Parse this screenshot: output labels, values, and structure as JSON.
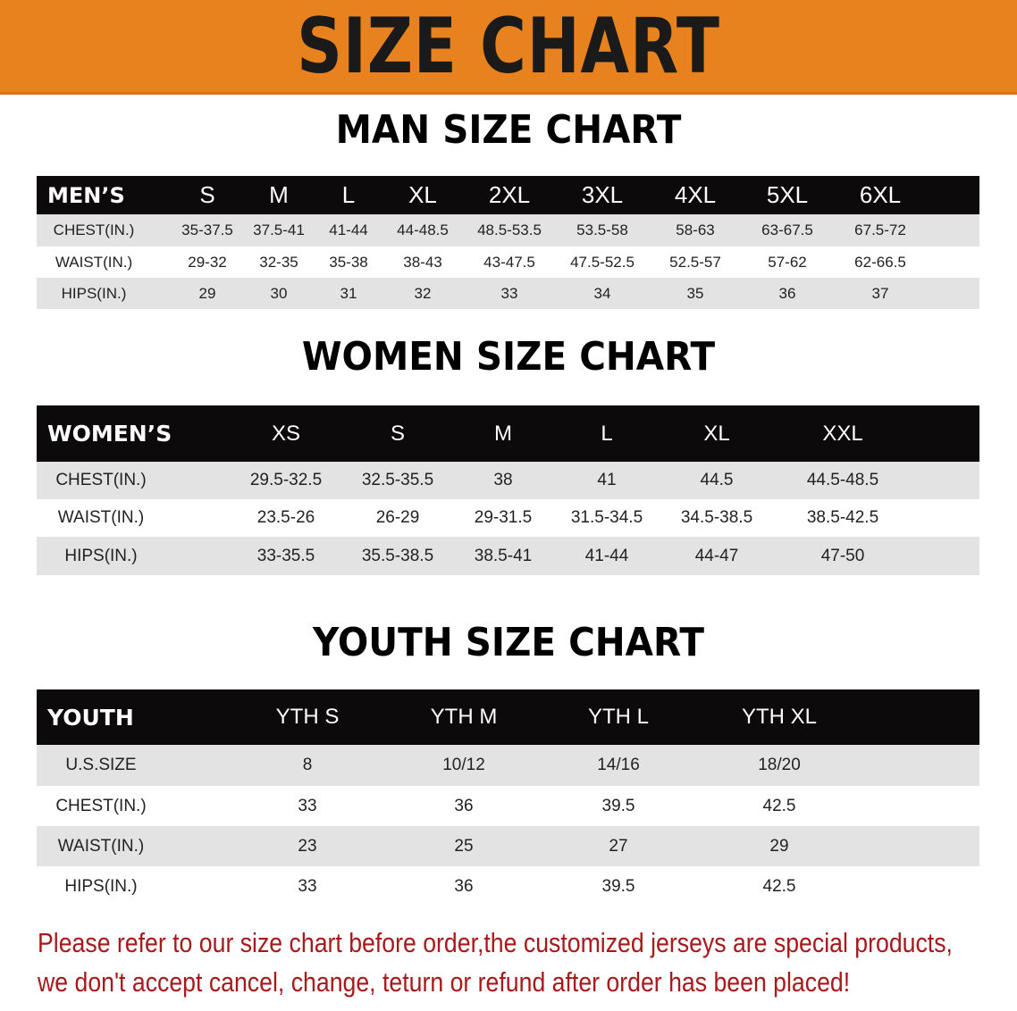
{
  "banner": {
    "title": "SIZE CHART",
    "color": "#e8821f"
  },
  "men": {
    "title": "MAN SIZE CHART",
    "header": [
      "MEN’S",
      "S",
      "M",
      "L",
      "XL",
      "2XL",
      "3XL",
      "4XL",
      "5XL",
      "6XL"
    ],
    "rows": [
      [
        "CHEST(IN.)",
        "35-37.5",
        "37.5-41",
        "41-44",
        "44-48.5",
        "48.5-53.5",
        "53.5-58",
        "58-63",
        "63-67.5",
        "67.5-72"
      ],
      [
        "WAIST(IN.)",
        "29-32",
        "32-35",
        "35-38",
        "38-43",
        "43-47.5",
        "47.5-52.5",
        "52.5-57",
        "57-62",
        "62-66.5"
      ],
      [
        "HIPS(IN.)",
        "29",
        "30",
        "31",
        "32",
        "33",
        "34",
        "35",
        "36",
        "37"
      ]
    ]
  },
  "women": {
    "title": "WOMEN SIZE CHART",
    "header": [
      "WOMEN’S",
      "XS",
      "S",
      "M",
      "L",
      "XL",
      "XXL"
    ],
    "rows": [
      [
        "CHEST(IN.)",
        "29.5-32.5",
        "32.5-35.5",
        "38",
        "41",
        "44.5",
        "44.5-48.5"
      ],
      [
        "WAIST(IN.)",
        "23.5-26",
        "26-29",
        "29-31.5",
        "31.5-34.5",
        "34.5-38.5",
        "38.5-42.5"
      ],
      [
        "HIPS(IN.)",
        "33-35.5",
        "35.5-38.5",
        "38.5-41",
        "41-44",
        "44-47",
        "47-50"
      ]
    ]
  },
  "youth": {
    "title": "YOUTH SIZE CHART",
    "header": [
      "YOUTH",
      "YTH S",
      "YTH M",
      "YTH L",
      "YTH XL"
    ],
    "rows": [
      [
        "U.S.SIZE",
        "8",
        "10/12",
        "14/16",
        "18/20"
      ],
      [
        "CHEST(IN.)",
        "33",
        "36",
        "39.5",
        "42.5"
      ],
      [
        "WAIST(IN.)",
        "23",
        "25",
        "27",
        "29"
      ],
      [
        "HIPS(IN.)",
        "33",
        "36",
        "39.5",
        "42.5"
      ]
    ]
  },
  "footer": {
    "line1": "Please refer to our size chart before order,the customized jerseys are special products,",
    "line2": "we don't accept cancel, change, teturn or refund after order has been placed!",
    "color": "#a8191b"
  }
}
